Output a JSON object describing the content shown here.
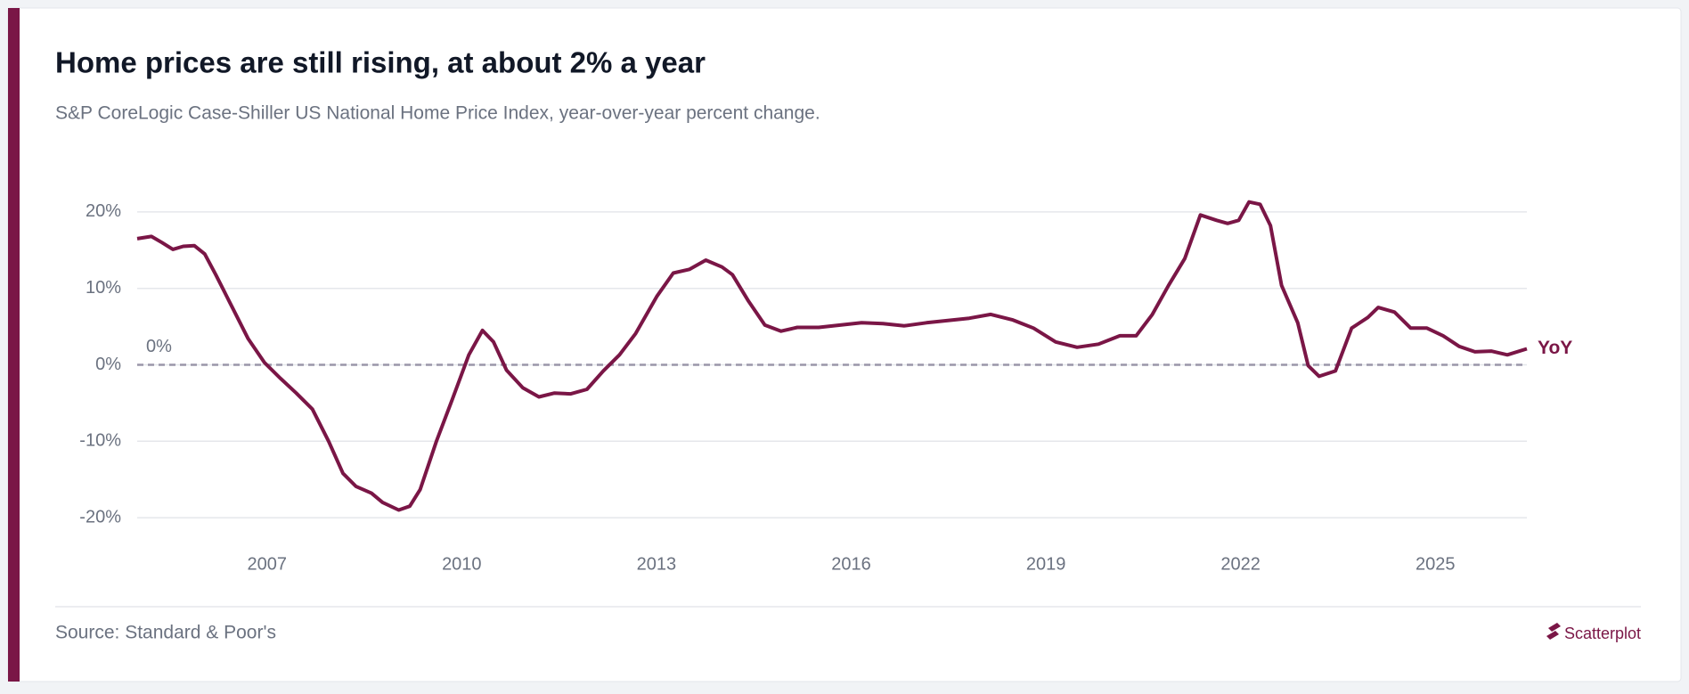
{
  "chart_data": {
    "type": "line",
    "title": "Home prices are still rising, at about 2% a year",
    "subtitle": "S&P CoreLogic Case-Shiller US National Home Price Index, year-over-year percent change.",
    "source": "Source: Standard & Poor's",
    "brand": "Scatterplot",
    "x": [
      2005.0,
      2005.22,
      2005.38,
      2005.55,
      2005.71,
      2005.88,
      2006.04,
      2006.21,
      2006.46,
      2006.71,
      2006.96,
      2007.21,
      2007.45,
      2007.7,
      2007.95,
      2008.17,
      2008.37,
      2008.61,
      2008.78,
      2009.03,
      2009.2,
      2009.36,
      2009.61,
      2009.86,
      2010.11,
      2010.32,
      2010.49,
      2010.69,
      2010.94,
      2011.19,
      2011.43,
      2011.68,
      2011.93,
      2012.18,
      2012.43,
      2012.68,
      2013.01,
      2013.26,
      2013.51,
      2013.76,
      2014.01,
      2014.17,
      2014.42,
      2014.67,
      2014.92,
      2015.17,
      2015.5,
      2015.83,
      2016.16,
      2016.49,
      2016.82,
      2017.16,
      2017.49,
      2017.82,
      2018.15,
      2018.48,
      2018.81,
      2019.15,
      2019.48,
      2019.81,
      2020.14,
      2020.39,
      2020.64,
      2020.89,
      2021.14,
      2021.38,
      2021.63,
      2021.8,
      2021.97,
      2022.13,
      2022.3,
      2022.46,
      2022.63,
      2022.88,
      2023.04,
      2023.21,
      2023.46,
      2023.71,
      2023.96,
      2024.12,
      2024.37,
      2024.62,
      2024.87,
      2025.12,
      2025.37,
      2025.61,
      2025.86,
      2026.11,
      2026.41
    ],
    "series": [
      {
        "name": "YoY",
        "color": "#7a1646",
        "values": [
          16.5,
          16.8,
          16,
          15.1,
          15.5,
          15.6,
          14.5,
          11.8,
          7.6,
          3.4,
          0.3,
          -1.8,
          -3.7,
          -5.8,
          -10,
          -14.2,
          -15.9,
          -16.8,
          -18,
          -19,
          -18.5,
          -16.3,
          -10,
          -4.4,
          1.3,
          4.5,
          3,
          -0.7,
          -3,
          -4.2,
          -3.7,
          -3.8,
          -3.2,
          -0.8,
          1.3,
          4.1,
          9,
          12,
          12.5,
          13.7,
          12.8,
          11.8,
          8.3,
          5.2,
          4.4,
          4.9,
          4.9,
          5.2,
          5.5,
          5.4,
          5.1,
          5.5,
          5.8,
          6.1,
          6.6,
          5.9,
          4.8,
          3,
          2.3,
          2.7,
          3.8,
          3.8,
          6.6,
          10.4,
          13.9,
          19.6,
          18.9,
          18.5,
          18.9,
          21.3,
          21,
          18.2,
          10.4,
          5.5,
          -0.1,
          -1.5,
          -0.8,
          4.8,
          6.2,
          7.5,
          6.9,
          4.8,
          4.8,
          3.8,
          2.4,
          1.7,
          1.8,
          1.3,
          2.1
        ]
      }
    ],
    "xlim": [
      2005.0,
      2026.41
    ],
    "xticks": [
      2007,
      2010,
      2013,
      2016,
      2019,
      2022,
      2025
    ],
    "ylim": [
      -25,
      25
    ],
    "yticks": [
      {
        "value": -20,
        "label": "-20%"
      },
      {
        "value": -10,
        "label": "-10%"
      },
      {
        "value": 0,
        "label": "0%"
      },
      {
        "value": 10,
        "label": "10%"
      },
      {
        "value": 20,
        "label": "20%"
      }
    ],
    "reference_line": {
      "value": 0,
      "label": "0%"
    },
    "grid": true
  }
}
